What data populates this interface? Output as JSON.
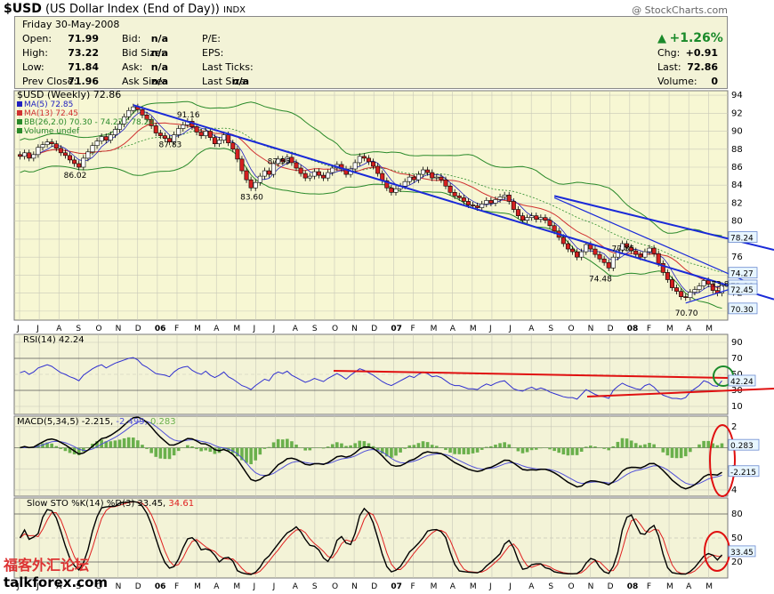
{
  "header": {
    "symbol": "$USD",
    "name": "(US Dollar Index (End of Day))",
    "exchange": "INDX",
    "credit": "@ StockCharts.com"
  },
  "quote": {
    "date": "Friday   30-May-2008",
    "rows": [
      {
        "l1": "Open:",
        "v1": "71.99",
        "l2": "Bid:",
        "v2": "n/a",
        "l3": "P/E:",
        "v3": ""
      },
      {
        "l1": "High:",
        "v1": "73.22",
        "l2": "Bid Size:",
        "v2": "n/a",
        "l3": "EPS:",
        "v3": ""
      },
      {
        "l1": "Low:",
        "v1": "71.84",
        "l2": "Ask:",
        "v2": "n/a",
        "l3": "Last Ticks:",
        "v3": ""
      },
      {
        "l1": "Prev Close:",
        "v1": "71.96",
        "l2": "Ask Size:",
        "v2": "n/a",
        "l3": "Last Size:",
        "v3": "n/a"
      }
    ],
    "pct_change": "+1.26%",
    "right_rows": [
      {
        "label": "Chg:",
        "value": "+0.91"
      },
      {
        "label": "Last:",
        "value": "72.86"
      },
      {
        "label": "Volume:",
        "value": "0"
      }
    ]
  },
  "watermark": {
    "cn": "福客外汇论坛",
    "en": "talkforex.com"
  },
  "colors": {
    "panel_bg": "#f3f3d7",
    "price_bg": "#f7f7d3",
    "grid": "#c8c8b8",
    "up": "#ffffff",
    "down": "#d42020",
    "ma5": "#2020c0",
    "ma13": "#d03030",
    "bb": "#2a8a2a",
    "trend": "#1a2ad8",
    "red_line": "#e01010",
    "circle_green": "#1a8a2a",
    "circle_red": "#e01010"
  },
  "chart_data": [
    {
      "type": "candlestick",
      "title": "$USD (Weekly) 72.86",
      "legend": [
        "MA(5) 72.85",
        "MA(13) 72.45",
        "BB(26,2.0) 70.30 - 74.27 - 78.24",
        "Volume undef"
      ],
      "legend_position": "top-left",
      "grid": true,
      "ylim": [
        69,
        94.5
      ],
      "y_ticks": [
        94,
        92,
        90,
        88,
        86,
        84,
        82,
        80,
        78,
        76,
        74,
        72,
        70
      ],
      "x_labels": [
        "J",
        "J",
        "A",
        "S",
        "O",
        "N",
        "D",
        "06",
        "F",
        "M",
        "A",
        "M",
        "J",
        "J",
        "A",
        "S",
        "O",
        "N",
        "D",
        "07",
        "F",
        "M",
        "A",
        "M",
        "J",
        "J",
        "A",
        "S",
        "O",
        "N",
        "D",
        "08",
        "F",
        "M",
        "A",
        "M"
      ],
      "closes": [
        87.2,
        87.6,
        87.0,
        87.4,
        88.2,
        88.5,
        88.8,
        88.6,
        88.1,
        87.6,
        87.3,
        86.8,
        86.4,
        86.0,
        87.0,
        87.7,
        88.4,
        88.9,
        89.4,
        89.0,
        89.6,
        90.2,
        90.8,
        91.6,
        92.3,
        92.7,
        92.4,
        91.8,
        91.3,
        90.6,
        89.8,
        89.5,
        89.2,
        88.8,
        89.6,
        90.3,
        90.7,
        91.1,
        90.5,
        89.9,
        89.5,
        90.0,
        89.3,
        88.6,
        89.0,
        89.6,
        88.7,
        88.0,
        86.9,
        85.6,
        84.6,
        83.7,
        84.3,
        85.0,
        85.6,
        85.2,
        86.4,
        86.9,
        86.6,
        87.1,
        86.5,
        85.9,
        85.3,
        84.8,
        85.0,
        85.5,
        85.1,
        84.8,
        85.4,
        85.9,
        86.3,
        85.8,
        85.2,
        85.8,
        86.5,
        87.2,
        87.0,
        86.6,
        86.1,
        85.3,
        84.5,
        83.7,
        83.2,
        83.6,
        83.9,
        84.4,
        84.9,
        84.6,
        85.2,
        85.7,
        85.4,
        84.8,
        84.9,
        84.6,
        83.9,
        83.2,
        82.8,
        82.6,
        82.2,
        81.8,
        81.7,
        81.5,
        81.9,
        82.3,
        82.0,
        82.4,
        82.7,
        82.9,
        82.2,
        81.3,
        80.6,
        80.1,
        80.4,
        80.6,
        80.2,
        80.4,
        80.1,
        79.5,
        78.9,
        78.2,
        77.5,
        76.9,
        76.6,
        76.0,
        76.6,
        77.4,
        76.9,
        76.3,
        75.8,
        75.4,
        74.8,
        76.0,
        76.8,
        77.5,
        77.1,
        76.7,
        76.3,
        76.0,
        76.6,
        77.0,
        76.4,
        75.3,
        74.3,
        73.5,
        72.6,
        72.2,
        71.6,
        71.5,
        72.1,
        72.4,
        72.8,
        73.4,
        73.0,
        72.3,
        72.0,
        72.86
      ],
      "annotations": [
        {
          "text": "91.16",
          "x_index": 37,
          "y": 91.16
        },
        {
          "text": "86.02",
          "x_index": 12,
          "y": 86.02
        },
        {
          "text": "87.83",
          "x_index": 33,
          "y": 87.83
        },
        {
          "text": "87.55",
          "x_index": 57,
          "y": 87.55
        },
        {
          "text": "83.60",
          "x_index": 51,
          "y": 83.6
        },
        {
          "text": "77.85",
          "x_index": 133,
          "y": 77.85
        },
        {
          "text": "74.48",
          "x_index": 128,
          "y": 74.48
        },
        {
          "text": "73.89",
          "x_index": 155,
          "y": 73.89
        },
        {
          "text": "70.70",
          "x_index": 147,
          "y": 70.7
        }
      ],
      "value_tags": [
        {
          "text": "78.24",
          "y": 78.24
        },
        {
          "text": "74.27",
          "y": 74.27
        },
        {
          "text": "72.86",
          "y": 72.86
        },
        {
          "text": "72.45",
          "y": 72.45
        },
        {
          "text": "70.30",
          "y": 70.3
        }
      ]
    },
    {
      "type": "line",
      "title": "RSI(14) 42.24",
      "ylim": [
        0,
        100
      ],
      "y_ticks": [
        90,
        70,
        50,
        30,
        10
      ],
      "grid": true,
      "value_tag": "42.24",
      "values": [
        52,
        54,
        50,
        53,
        58,
        60,
        62,
        60,
        56,
        52,
        50,
        47,
        45,
        42,
        49,
        53,
        57,
        60,
        62,
        58,
        61,
        64,
        66,
        68,
        70,
        71,
        68,
        62,
        59,
        55,
        51,
        50,
        49,
        47,
        53,
        57,
        59,
        60,
        55,
        52,
        50,
        54,
        49,
        46,
        49,
        53,
        47,
        44,
        40,
        36,
        34,
        31,
        36,
        40,
        44,
        42,
        50,
        53,
        51,
        54,
        49,
        46,
        43,
        40,
        42,
        45,
        43,
        41,
        45,
        48,
        51,
        48,
        44,
        49,
        53,
        57,
        55,
        52,
        49,
        45,
        41,
        38,
        36,
        39,
        42,
        45,
        48,
        46,
        50,
        53,
        51,
        47,
        48,
        46,
        42,
        38,
        36,
        36,
        34,
        32,
        32,
        31,
        35,
        38,
        36,
        39,
        41,
        42,
        37,
        32,
        30,
        29,
        32,
        34,
        31,
        33,
        31,
        28,
        26,
        24,
        22,
        21,
        21,
        19,
        25,
        31,
        28,
        25,
        23,
        22,
        20,
        30,
        35,
        39,
        36,
        34,
        32,
        31,
        36,
        38,
        34,
        28,
        24,
        22,
        20,
        20,
        19,
        21,
        28,
        32,
        36,
        42,
        40,
        36,
        35,
        42
      ]
    },
    {
      "type": "line",
      "title": "MACD(5,34,5) -2.215, -2.499, 0.283",
      "series_names": [
        "-2.215",
        "-2.499",
        "0.283"
      ],
      "ylim": [
        -4.6,
        3.0
      ],
      "y_ticks": [
        2,
        0,
        -2,
        -4
      ],
      "grid": true,
      "value_tags": [
        "0.283",
        "-2.215"
      ]
    },
    {
      "type": "line",
      "title": "Slow STO %K(14) %D(3) 33.45, 34.61",
      "series_names": [
        "33.45",
        "34.61"
      ],
      "ylim": [
        0,
        100
      ],
      "y_ticks": [
        80,
        50,
        20
      ],
      "grid": true,
      "value_tag": "33.45"
    }
  ]
}
